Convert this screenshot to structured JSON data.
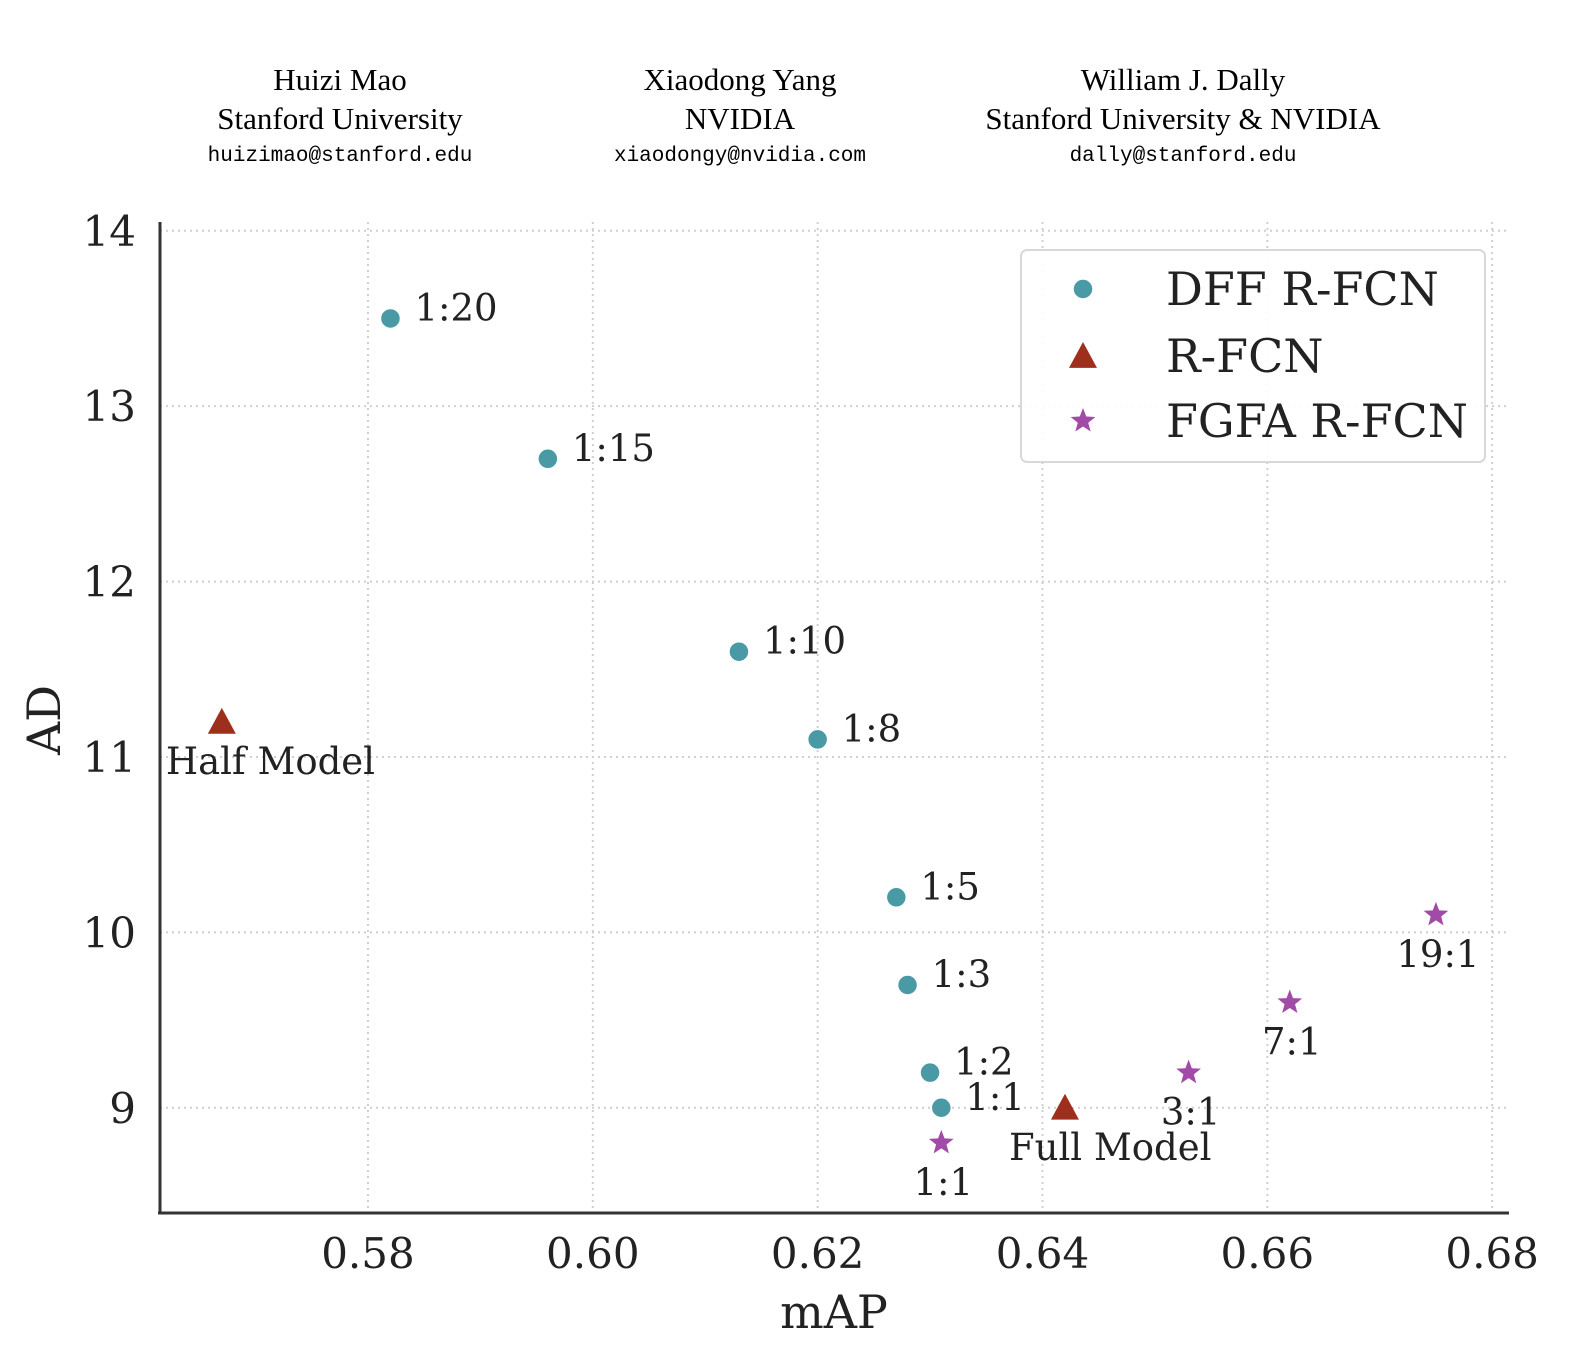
{
  "authors": [
    {
      "name": "Huizi Mao",
      "affiliation": "Stanford University",
      "email": "huizimao@stanford.edu"
    },
    {
      "name": "Xiaodong Yang",
      "affiliation": "NVIDIA",
      "email": "xiaodongy@nvidia.com"
    },
    {
      "name": "William J. Dally",
      "affiliation": "Stanford University & NVIDIA",
      "email": "dally@stanford.edu"
    }
  ],
  "chart_data": {
    "type": "scatter",
    "title": "",
    "xlabel": "mAP",
    "ylabel": "AD",
    "xlim": [
      0.5615,
      0.6815
    ],
    "ylim": [
      8.4,
      14.05
    ],
    "xticks": [
      0.58,
      0.6,
      0.62,
      0.64,
      0.66,
      0.68
    ],
    "xtick_labels": [
      "0.58",
      "0.60",
      "0.62",
      "0.64",
      "0.66",
      "0.68"
    ],
    "yticks": [
      9,
      10,
      11,
      12,
      13,
      14
    ],
    "ytick_labels": [
      "9",
      "10",
      "11",
      "12",
      "13",
      "14"
    ],
    "grid": true,
    "legend_position": "top-right",
    "colors": {
      "dff": "#4a9aa6",
      "rfcn": "#9e2f1c",
      "fgfa": "#a14aa8"
    },
    "series": [
      {
        "name": "DFF R-FCN",
        "marker": "circle",
        "color": "#4a9aa6",
        "points": [
          {
            "x": 0.582,
            "y": 13.5,
            "label": "1:20"
          },
          {
            "x": 0.596,
            "y": 12.7,
            "label": "1:15"
          },
          {
            "x": 0.613,
            "y": 11.6,
            "label": "1:10"
          },
          {
            "x": 0.62,
            "y": 11.1,
            "label": "1:8"
          },
          {
            "x": 0.627,
            "y": 10.2,
            "label": "1:5"
          },
          {
            "x": 0.628,
            "y": 9.7,
            "label": "1:3"
          },
          {
            "x": 0.63,
            "y": 9.2,
            "label": "1:2"
          },
          {
            "x": 0.631,
            "y": 9.0,
            "label": "1:1"
          }
        ]
      },
      {
        "name": "R-FCN",
        "marker": "triangle",
        "color": "#9e2f1c",
        "points": [
          {
            "x": 0.567,
            "y": 11.2,
            "label": "Half Model"
          },
          {
            "x": 0.642,
            "y": 9.0,
            "label": "Full Model"
          }
        ]
      },
      {
        "name": "FGFA R-FCN",
        "marker": "star",
        "color": "#a14aa8",
        "points": [
          {
            "x": 0.631,
            "y": 8.8,
            "label": "1:1"
          },
          {
            "x": 0.653,
            "y": 9.2,
            "label": "3:1"
          },
          {
            "x": 0.662,
            "y": 9.6,
            "label": "7:1"
          },
          {
            "x": 0.675,
            "y": 10.1,
            "label": "19:1"
          }
        ]
      }
    ]
  }
}
